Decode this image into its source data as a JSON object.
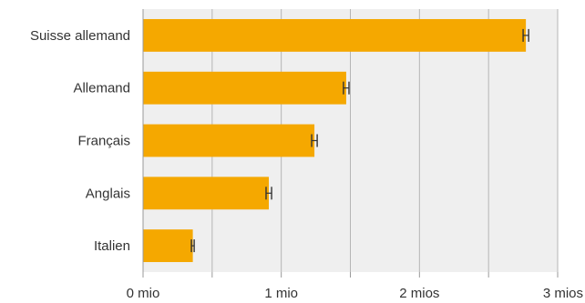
{
  "chart_data": {
    "type": "bar",
    "orientation": "horizontal",
    "categories": [
      "Suisse allemand",
      "Allemand",
      "Français",
      "Anglais",
      "Italien"
    ],
    "values": [
      2.77,
      1.47,
      1.24,
      0.91,
      0.36
    ],
    "error_margins": [
      0.02,
      0.02,
      0.02,
      0.02,
      0.01
    ],
    "xlim": [
      0,
      3
    ],
    "x_ticks": [
      0,
      1,
      2,
      3
    ],
    "x_tick_labels": [
      "0 mio",
      "1 mio",
      "2 mios",
      "3 mios"
    ],
    "minor_gridlines": [
      0.5,
      1.5,
      2.5
    ],
    "grid": true,
    "title": "",
    "xlabel": "",
    "ylabel": "",
    "colors": {
      "bar": "#f5a800",
      "plot_background": "#efefef",
      "grid": "#b5b5b5",
      "error_bar": "#333333",
      "axis": "#9a9a9a"
    }
  }
}
